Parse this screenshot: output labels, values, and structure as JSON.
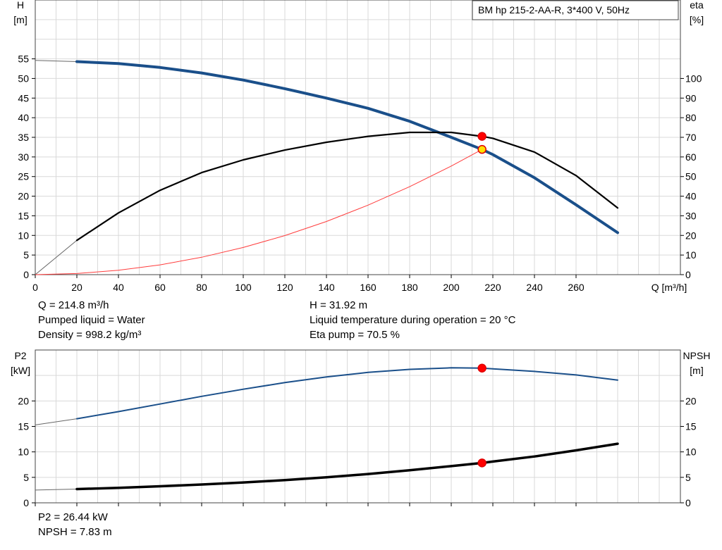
{
  "info_top_left": [
    "Q = 214.8 m³/h",
    "Pumped liquid = Water",
    "Density = 998.2 kg/m³"
  ],
  "info_top_right": [
    "H = 31.92 m",
    "Liquid temperature during operation = 20 °C",
    "Eta pump = 70.5 %"
  ],
  "info_bottom": [
    "P2 = 26.44 kW",
    "NPSH = 7.83 m"
  ],
  "chart_data": [
    {
      "type": "line",
      "title": "BM hp 215-2-AA-R, 3*400 V, 50Hz",
      "xlabel": "Q [m³/h]",
      "xlim": [
        0,
        300
      ],
      "x_ticks": [
        0,
        20,
        40,
        60,
        80,
        100,
        120,
        140,
        160,
        180,
        200,
        220,
        240,
        260
      ],
      "ylabel_left": [
        "H",
        "[m]"
      ],
      "ylim_left": [
        0,
        70
      ],
      "y_ticks_left": [
        0,
        5,
        10,
        15,
        20,
        25,
        30,
        35,
        40,
        45,
        50,
        55
      ],
      "ylabel_right": [
        "eta",
        "[%]"
      ],
      "ylim_right": [
        0,
        140
      ],
      "y_ticks_right": [
        0,
        10,
        20,
        30,
        40,
        50,
        60,
        70,
        80,
        90,
        100
      ],
      "grid": true,
      "series": [
        {
          "axis": "left",
          "color": "#1a4f8a",
          "x": [
            0,
            20,
            40,
            60,
            80,
            100,
            120,
            140,
            160,
            180,
            200,
            214.8,
            220,
            240,
            260,
            280
          ],
          "y": [
            54.6,
            54.3,
            53.8,
            52.8,
            51.4,
            49.6,
            47.4,
            45.0,
            42.4,
            39.1,
            35.0,
            31.92,
            30.6,
            24.7,
            17.8,
            10.7
          ]
        },
        {
          "axis": "right",
          "color": "#000000",
          "x": [
            0,
            20,
            40,
            60,
            80,
            100,
            120,
            140,
            160,
            180,
            200,
            214.8,
            220,
            240,
            260,
            280
          ],
          "y": [
            0,
            17.5,
            31.5,
            43,
            52,
            58.5,
            63.5,
            67.5,
            70.5,
            72.5,
            72.5,
            70.5,
            69.5,
            62.5,
            50.5,
            34
          ]
        },
        {
          "axis": "left",
          "color": "#ff3c3c",
          "x": [
            0,
            20,
            40,
            60,
            80,
            100,
            120,
            140,
            160,
            180,
            200,
            214.8
          ],
          "y": [
            0,
            0.28,
            1.11,
            2.5,
            4.43,
            6.92,
            9.96,
            13.56,
            17.71,
            22.42,
            27.67,
            31.92
          ]
        }
      ],
      "markers": [
        {
          "axis": "left",
          "x": 214.8,
          "y": 31.92,
          "color": "#ffe000"
        },
        {
          "axis": "right",
          "x": 214.8,
          "y": 70.5,
          "color": "#ff0000"
        }
      ]
    },
    {
      "type": "line",
      "xlim": [
        0,
        300
      ],
      "x_ticks": [
        0,
        20,
        40,
        60,
        80,
        100,
        120,
        140,
        160,
        180,
        200,
        220,
        240,
        260
      ],
      "ylabel_left": [
        "P2",
        "[kW]"
      ],
      "ylim_left": [
        0,
        30
      ],
      "y_ticks_left": [
        0,
        5,
        10,
        15,
        20
      ],
      "ylabel_right": [
        "NPSH",
        "[m]"
      ],
      "ylim_right": [
        0,
        30
      ],
      "y_ticks_right": [
        0,
        5,
        10,
        15,
        20
      ],
      "grid": true,
      "series": [
        {
          "axis": "left",
          "color": "#1a4f8a",
          "x": [
            0,
            20,
            40,
            60,
            80,
            100,
            120,
            140,
            160,
            180,
            200,
            214.8,
            220,
            240,
            260,
            280
          ],
          "y": [
            15.3,
            16.5,
            17.9,
            19.4,
            20.9,
            22.3,
            23.6,
            24.7,
            25.6,
            26.2,
            26.5,
            26.44,
            26.3,
            25.8,
            25.1,
            24.1
          ]
        },
        {
          "axis": "right",
          "color": "#000000",
          "x": [
            0,
            20,
            40,
            60,
            80,
            100,
            120,
            140,
            160,
            180,
            200,
            214.8,
            220,
            240,
            260,
            280
          ],
          "y": [
            2.5,
            2.7,
            2.95,
            3.25,
            3.6,
            4.0,
            4.45,
            5.0,
            5.65,
            6.4,
            7.2,
            7.83,
            8.1,
            9.1,
            10.3,
            11.6
          ]
        }
      ],
      "markers": [
        {
          "axis": "left",
          "x": 214.8,
          "y": 26.44,
          "color": "#ff0000"
        },
        {
          "axis": "right",
          "x": 214.8,
          "y": 7.83,
          "color": "#ff0000"
        }
      ]
    }
  ]
}
